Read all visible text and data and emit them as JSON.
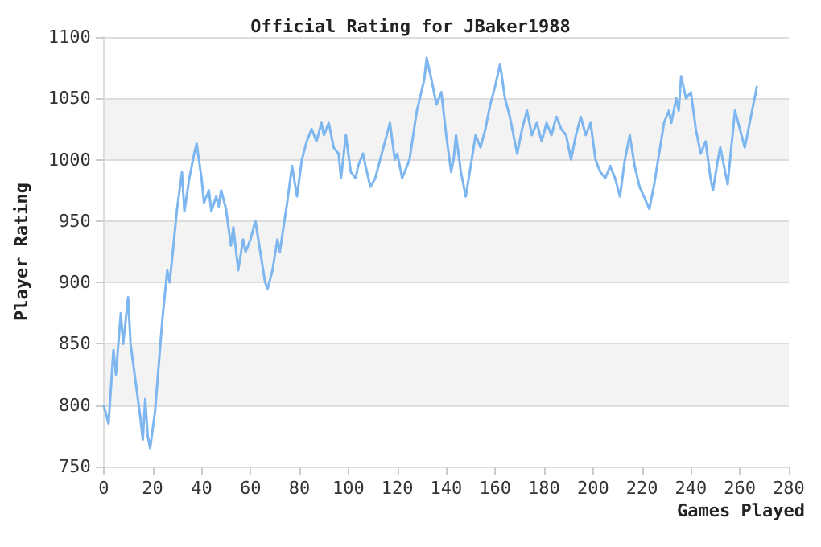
{
  "chart_data": {
    "type": "line",
    "title": "Official Rating for JBaker1988",
    "xlabel": "Games Played",
    "ylabel": "Player Rating",
    "x": [
      0,
      2,
      4,
      5,
      7,
      8,
      10,
      11,
      13,
      15,
      16,
      17,
      18,
      19,
      21,
      24,
      26,
      27,
      30,
      32,
      33,
      35,
      37,
      38,
      40,
      41,
      43,
      44,
      46,
      47,
      48,
      50,
      52,
      53,
      55,
      57,
      58,
      60,
      62,
      64,
      66,
      67,
      69,
      71,
      72,
      75,
      77,
      79,
      81,
      83,
      85,
      87,
      89,
      90,
      92,
      94,
      96,
      97,
      99,
      101,
      103,
      104,
      106,
      107,
      109,
      111,
      113,
      115,
      117,
      119,
      120,
      122,
      125,
      128,
      131,
      132,
      134,
      136,
      138,
      140,
      142,
      143,
      144,
      146,
      148,
      150,
      152,
      154,
      156,
      158,
      160,
      162,
      164,
      166,
      168,
      169,
      171,
      173,
      175,
      177,
      179,
      181,
      183,
      185,
      187,
      189,
      191,
      193,
      195,
      197,
      199,
      201,
      203,
      205,
      207,
      209,
      211,
      213,
      215,
      217,
      219,
      223,
      225,
      227,
      229,
      231,
      232,
      234,
      235,
      236,
      238,
      240,
      242,
      244,
      246,
      248,
      249,
      251,
      252,
      254,
      255,
      256,
      258,
      260,
      262,
      264,
      267
    ],
    "series": [
      {
        "color": "#7eb6f0",
        "values": [
          800,
          785,
          845,
          825,
          875,
          850,
          888,
          850,
          820,
          790,
          772,
          805,
          775,
          765,
          795,
          870,
          910,
          900,
          960,
          990,
          958,
          985,
          1005,
          1013,
          985,
          965,
          975,
          958,
          970,
          962,
          975,
          960,
          930,
          945,
          910,
          935,
          925,
          935,
          950,
          925,
          900,
          895,
          910,
          935,
          925,
          965,
          995,
          970,
          1000,
          1015,
          1025,
          1015,
          1030,
          1020,
          1030,
          1010,
          1005,
          985,
          1020,
          990,
          985,
          995,
          1005,
          995,
          978,
          985,
          1000,
          1015,
          1030,
          1000,
          1005,
          985,
          1000,
          1040,
          1065,
          1083,
          1065,
          1045,
          1055,
          1020,
          990,
          1000,
          1020,
          990,
          970,
          995,
          1020,
          1010,
          1025,
          1045,
          1060,
          1078,
          1050,
          1035,
          1015,
          1005,
          1025,
          1040,
          1020,
          1030,
          1015,
          1030,
          1020,
          1035,
          1025,
          1020,
          1000,
          1020,
          1035,
          1020,
          1030,
          1000,
          990,
          985,
          995,
          985,
          970,
          1000,
          1020,
          995,
          978,
          960,
          980,
          1005,
          1030,
          1040,
          1030,
          1050,
          1040,
          1068,
          1050,
          1055,
          1025,
          1005,
          1015,
          985,
          975,
          1000,
          1010,
          990,
          980,
          1000,
          1040,
          1025,
          1010,
          1030,
          1060
        ]
      }
    ],
    "xlim": [
      0,
      280
    ],
    "xticks": [
      0,
      20,
      40,
      60,
      80,
      100,
      120,
      140,
      160,
      180,
      200,
      220,
      240,
      260,
      280
    ],
    "ylim": [
      750,
      1100
    ],
    "yticks": [
      750,
      800,
      850,
      900,
      950,
      1000,
      1050,
      1100
    ],
    "grid": "y",
    "marker": "none",
    "line_style": "solid"
  }
}
